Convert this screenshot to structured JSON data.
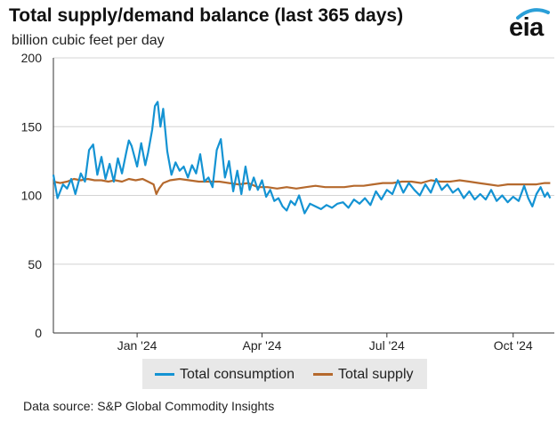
{
  "title": "Total supply/demand balance (last 365 days)",
  "subtitle": "billion cubic feet per day",
  "logo_text": "eia",
  "source": "Data source: S&P Global Commodity Insights",
  "colors": {
    "consumption": "#1493d3",
    "supply": "#b5692d",
    "grid": "#d4d4d4",
    "axis": "#333333"
  },
  "chart_data": {
    "type": "line",
    "ylim": [
      0,
      200
    ],
    "yticks": [
      0,
      50,
      100,
      150,
      200
    ],
    "xlim": [
      "2023-11-01",
      "2024-10-31"
    ],
    "xticks": [
      {
        "label": "Jan '24",
        "date": "2024-01-01"
      },
      {
        "label": "Apr '24",
        "date": "2024-04-01"
      },
      {
        "label": "Jul '24",
        "date": "2024-07-01"
      },
      {
        "label": "Oct '24",
        "date": "2024-10-01"
      }
    ],
    "grid": true,
    "legend_position": "bottom",
    "series": [
      {
        "name": "Total consumption",
        "key": "consumption",
        "points": [
          [
            "2023-11-01",
            115
          ],
          [
            "2023-11-04",
            98
          ],
          [
            "2023-11-08",
            108
          ],
          [
            "2023-11-11",
            105
          ],
          [
            "2023-11-14",
            112
          ],
          [
            "2023-11-17",
            101
          ],
          [
            "2023-11-21",
            116
          ],
          [
            "2023-11-24",
            110
          ],
          [
            "2023-11-27",
            133
          ],
          [
            "2023-11-30",
            137
          ],
          [
            "2023-12-03",
            115
          ],
          [
            "2023-12-06",
            128
          ],
          [
            "2023-12-09",
            112
          ],
          [
            "2023-12-12",
            123
          ],
          [
            "2023-12-15",
            110
          ],
          [
            "2023-12-18",
            127
          ],
          [
            "2023-12-21",
            116
          ],
          [
            "2023-12-24",
            131
          ],
          [
            "2023-12-26",
            140
          ],
          [
            "2023-12-28",
            136
          ],
          [
            "2024-01-01",
            121
          ],
          [
            "2024-01-04",
            138
          ],
          [
            "2024-01-07",
            122
          ],
          [
            "2024-01-09",
            131
          ],
          [
            "2024-01-12",
            148
          ],
          [
            "2024-01-14",
            165
          ],
          [
            "2024-01-16",
            168
          ],
          [
            "2024-01-18",
            150
          ],
          [
            "2024-01-20",
            163
          ],
          [
            "2024-01-23",
            132
          ],
          [
            "2024-01-26",
            115
          ],
          [
            "2024-01-29",
            124
          ],
          [
            "2024-02-01",
            118
          ],
          [
            "2024-02-04",
            121
          ],
          [
            "2024-02-07",
            113
          ],
          [
            "2024-02-10",
            122
          ],
          [
            "2024-02-13",
            116
          ],
          [
            "2024-02-16",
            130
          ],
          [
            "2024-02-19",
            110
          ],
          [
            "2024-02-22",
            113
          ],
          [
            "2024-02-25",
            106
          ],
          [
            "2024-02-28",
            133
          ],
          [
            "2024-03-02",
            141
          ],
          [
            "2024-03-05",
            113
          ],
          [
            "2024-03-08",
            125
          ],
          [
            "2024-03-11",
            103
          ],
          [
            "2024-03-14",
            118
          ],
          [
            "2024-03-17",
            101
          ],
          [
            "2024-03-20",
            121
          ],
          [
            "2024-03-23",
            104
          ],
          [
            "2024-03-26",
            113
          ],
          [
            "2024-03-29",
            104
          ],
          [
            "2024-04-01",
            111
          ],
          [
            "2024-04-04",
            99
          ],
          [
            "2024-04-07",
            104
          ],
          [
            "2024-04-10",
            96
          ],
          [
            "2024-04-13",
            98
          ],
          [
            "2024-04-16",
            92
          ],
          [
            "2024-04-19",
            89
          ],
          [
            "2024-04-22",
            96
          ],
          [
            "2024-04-25",
            93
          ],
          [
            "2024-04-28",
            100
          ],
          [
            "2024-05-02",
            87
          ],
          [
            "2024-05-06",
            94
          ],
          [
            "2024-05-10",
            92
          ],
          [
            "2024-05-14",
            90
          ],
          [
            "2024-05-18",
            93
          ],
          [
            "2024-05-22",
            91
          ],
          [
            "2024-05-26",
            94
          ],
          [
            "2024-05-30",
            95
          ],
          [
            "2024-06-03",
            91
          ],
          [
            "2024-06-07",
            97
          ],
          [
            "2024-06-11",
            94
          ],
          [
            "2024-06-15",
            98
          ],
          [
            "2024-06-19",
            93
          ],
          [
            "2024-06-23",
            103
          ],
          [
            "2024-06-27",
            97
          ],
          [
            "2024-07-01",
            104
          ],
          [
            "2024-07-05",
            101
          ],
          [
            "2024-07-09",
            111
          ],
          [
            "2024-07-13",
            102
          ],
          [
            "2024-07-17",
            109
          ],
          [
            "2024-07-21",
            104
          ],
          [
            "2024-07-25",
            100
          ],
          [
            "2024-07-29",
            108
          ],
          [
            "2024-08-02",
            102
          ],
          [
            "2024-08-06",
            112
          ],
          [
            "2024-08-10",
            104
          ],
          [
            "2024-08-14",
            108
          ],
          [
            "2024-08-18",
            102
          ],
          [
            "2024-08-22",
            105
          ],
          [
            "2024-08-26",
            98
          ],
          [
            "2024-08-30",
            103
          ],
          [
            "2024-09-03",
            97
          ],
          [
            "2024-09-07",
            101
          ],
          [
            "2024-09-11",
            97
          ],
          [
            "2024-09-15",
            104
          ],
          [
            "2024-09-19",
            96
          ],
          [
            "2024-09-23",
            100
          ],
          [
            "2024-09-27",
            95
          ],
          [
            "2024-10-01",
            99
          ],
          [
            "2024-10-05",
            96
          ],
          [
            "2024-10-09",
            107
          ],
          [
            "2024-10-12",
            98
          ],
          [
            "2024-10-15",
            92
          ],
          [
            "2024-10-18",
            101
          ],
          [
            "2024-10-21",
            106
          ],
          [
            "2024-10-24",
            99
          ],
          [
            "2024-10-26",
            102
          ],
          [
            "2024-10-28",
            98
          ]
        ]
      },
      {
        "name": "Total supply",
        "key": "supply",
        "points": [
          [
            "2023-11-01",
            110
          ],
          [
            "2023-11-06",
            109
          ],
          [
            "2023-11-11",
            110
          ],
          [
            "2023-11-16",
            112
          ],
          [
            "2023-11-21",
            111
          ],
          [
            "2023-11-26",
            112
          ],
          [
            "2023-12-01",
            111
          ],
          [
            "2023-12-06",
            111
          ],
          [
            "2023-12-11",
            110
          ],
          [
            "2023-12-16",
            111
          ],
          [
            "2023-12-21",
            110
          ],
          [
            "2023-12-26",
            112
          ],
          [
            "2023-12-31",
            111
          ],
          [
            "2024-01-05",
            112
          ],
          [
            "2024-01-09",
            110
          ],
          [
            "2024-01-13",
            108
          ],
          [
            "2024-01-15",
            101
          ],
          [
            "2024-01-17",
            105
          ],
          [
            "2024-01-20",
            109
          ],
          [
            "2024-01-25",
            111
          ],
          [
            "2024-02-01",
            112
          ],
          [
            "2024-02-08",
            111
          ],
          [
            "2024-02-15",
            110
          ],
          [
            "2024-02-22",
            110
          ],
          [
            "2024-03-01",
            110
          ],
          [
            "2024-03-08",
            109
          ],
          [
            "2024-03-15",
            108
          ],
          [
            "2024-03-22",
            109
          ],
          [
            "2024-03-29",
            106
          ],
          [
            "2024-04-05",
            106
          ],
          [
            "2024-04-12",
            105
          ],
          [
            "2024-04-19",
            106
          ],
          [
            "2024-04-26",
            105
          ],
          [
            "2024-05-03",
            106
          ],
          [
            "2024-05-10",
            107
          ],
          [
            "2024-05-17",
            106
          ],
          [
            "2024-05-24",
            106
          ],
          [
            "2024-05-31",
            106
          ],
          [
            "2024-06-07",
            107
          ],
          [
            "2024-06-14",
            107
          ],
          [
            "2024-06-21",
            108
          ],
          [
            "2024-06-28",
            109
          ],
          [
            "2024-07-05",
            109
          ],
          [
            "2024-07-12",
            110
          ],
          [
            "2024-07-19",
            110
          ],
          [
            "2024-07-26",
            109
          ],
          [
            "2024-08-02",
            111
          ],
          [
            "2024-08-09",
            110
          ],
          [
            "2024-08-16",
            110
          ],
          [
            "2024-08-23",
            111
          ],
          [
            "2024-08-30",
            110
          ],
          [
            "2024-09-06",
            109
          ],
          [
            "2024-09-13",
            108
          ],
          [
            "2024-09-20",
            107
          ],
          [
            "2024-09-27",
            108
          ],
          [
            "2024-10-04",
            108
          ],
          [
            "2024-10-11",
            108
          ],
          [
            "2024-10-18",
            108
          ],
          [
            "2024-10-24",
            109
          ],
          [
            "2024-10-28",
            109
          ]
        ]
      }
    ]
  }
}
